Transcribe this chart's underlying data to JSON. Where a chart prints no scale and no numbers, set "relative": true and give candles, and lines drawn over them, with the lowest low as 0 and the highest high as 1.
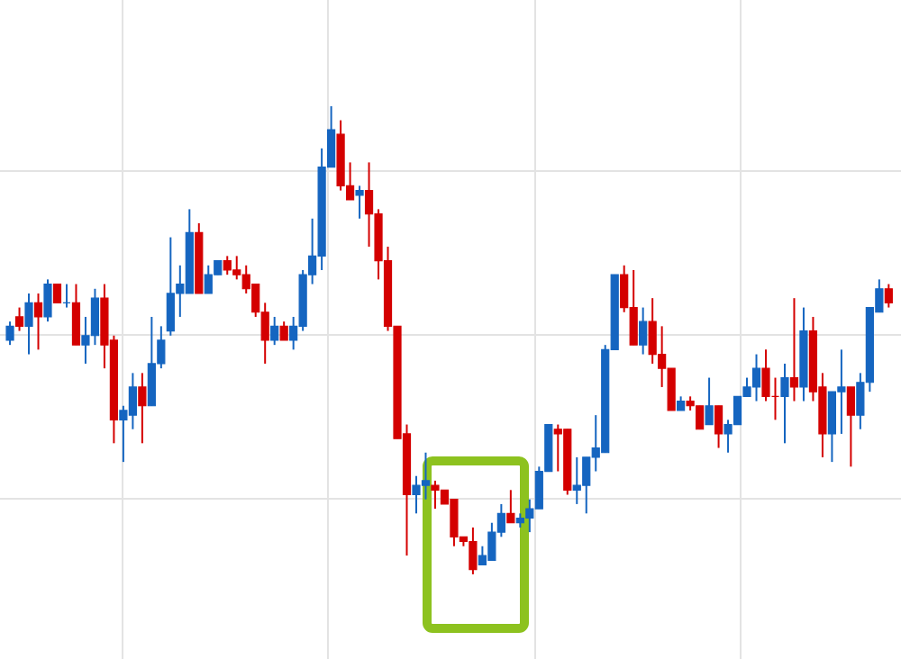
{
  "chart_data": {
    "type": "candlestick",
    "relative": true,
    "grid": true,
    "categories": [
      null,
      null,
      null,
      null,
      null,
      null,
      null,
      null,
      null,
      null,
      null,
      null,
      null,
      null,
      null,
      null,
      null,
      null,
      null,
      null,
      null,
      null,
      null,
      null,
      null,
      null,
      null,
      null,
      null,
      null,
      null,
      null,
      null,
      null,
      null,
      null,
      null,
      null,
      null,
      null,
      null,
      null,
      null,
      null,
      null,
      null,
      null,
      null,
      null,
      null,
      null,
      null,
      null,
      null,
      null,
      null,
      null,
      null,
      null,
      null,
      null,
      null,
      null,
      null,
      null,
      null,
      null,
      null,
      null,
      null,
      null,
      null,
      null,
      null,
      null,
      null,
      null,
      null,
      null,
      null,
      null,
      null,
      null,
      null,
      null,
      null,
      null,
      null,
      null,
      null,
      null,
      null,
      null,
      null
    ],
    "ohlc": [
      [
        0.5,
        0.54,
        0.49,
        0.53
      ],
      [
        0.55,
        0.57,
        0.52,
        0.53
      ],
      [
        0.53,
        0.6,
        0.47,
        0.58
      ],
      [
        0.58,
        0.6,
        0.48,
        0.55
      ],
      [
        0.55,
        0.63,
        0.54,
        0.62
      ],
      [
        0.62,
        0.62,
        0.58,
        0.58
      ],
      [
        0.58,
        0.62,
        0.57,
        0.58
      ],
      [
        0.58,
        0.62,
        0.49,
        0.49
      ],
      [
        0.49,
        0.55,
        0.45,
        0.51
      ],
      [
        0.51,
        0.61,
        0.49,
        0.59
      ],
      [
        0.59,
        0.62,
        0.44,
        0.49
      ],
      [
        0.5,
        0.51,
        0.28,
        0.33
      ],
      [
        0.33,
        0.36,
        0.24,
        0.35
      ],
      [
        0.34,
        0.43,
        0.31,
        0.4
      ],
      [
        0.4,
        0.43,
        0.28,
        0.36
      ],
      [
        0.36,
        0.55,
        0.36,
        0.45
      ],
      [
        0.45,
        0.53,
        0.44,
        0.5
      ],
      [
        0.52,
        0.72,
        0.51,
        0.6
      ],
      [
        0.6,
        0.66,
        0.55,
        0.62
      ],
      [
        0.6,
        0.78,
        0.6,
        0.73
      ],
      [
        0.73,
        0.75,
        0.6,
        0.6
      ],
      [
        0.6,
        0.66,
        0.6,
        0.64
      ],
      [
        0.64,
        0.67,
        0.64,
        0.67
      ],
      [
        0.67,
        0.68,
        0.64,
        0.65
      ],
      [
        0.65,
        0.68,
        0.63,
        0.64
      ],
      [
        0.64,
        0.66,
        0.6,
        0.61
      ],
      [
        0.62,
        0.62,
        0.55,
        0.56
      ],
      [
        0.56,
        0.58,
        0.45,
        0.5
      ],
      [
        0.5,
        0.55,
        0.49,
        0.53
      ],
      [
        0.53,
        0.54,
        0.5,
        0.5
      ],
      [
        0.5,
        0.55,
        0.48,
        0.53
      ],
      [
        0.53,
        0.65,
        0.52,
        0.64
      ],
      [
        0.64,
        0.76,
        0.62,
        0.68
      ],
      [
        0.68,
        0.91,
        0.65,
        0.87
      ],
      [
        0.87,
        1.0,
        0.87,
        0.95
      ],
      [
        0.94,
        0.97,
        0.82,
        0.83
      ],
      [
        0.83,
        0.88,
        0.8,
        0.8
      ],
      [
        0.81,
        0.83,
        0.76,
        0.82
      ],
      [
        0.82,
        0.88,
        0.7,
        0.77
      ],
      [
        0.77,
        0.78,
        0.63,
        0.67
      ],
      [
        0.67,
        0.7,
        0.52,
        0.53
      ],
      [
        0.53,
        0.53,
        0.29,
        0.29
      ],
      [
        0.3,
        0.32,
        0.04,
        0.17
      ],
      [
        0.17,
        0.21,
        0.13,
        0.19
      ],
      [
        0.19,
        0.26,
        0.16,
        0.2
      ],
      [
        0.19,
        0.2,
        0.14,
        0.18
      ],
      [
        0.18,
        0.18,
        0.15,
        0.15
      ],
      [
        0.16,
        0.16,
        0.06,
        0.08
      ],
      [
        0.08,
        0.08,
        0.06,
        0.07
      ],
      [
        0.07,
        0.1,
        0.0,
        0.01
      ],
      [
        0.02,
        0.06,
        0.02,
        0.04
      ],
      [
        0.03,
        0.11,
        0.03,
        0.09
      ],
      [
        0.09,
        0.15,
        0.08,
        0.13
      ],
      [
        0.13,
        0.18,
        0.11,
        0.11
      ],
      [
        0.11,
        0.13,
        0.1,
        0.12
      ],
      [
        0.12,
        0.16,
        0.09,
        0.14
      ],
      [
        0.14,
        0.23,
        0.14,
        0.22
      ],
      [
        0.22,
        0.32,
        0.22,
        0.32
      ],
      [
        0.31,
        0.32,
        0.22,
        0.3
      ],
      [
        0.31,
        0.31,
        0.17,
        0.18
      ],
      [
        0.18,
        0.25,
        0.15,
        0.19
      ],
      [
        0.19,
        0.25,
        0.13,
        0.25
      ],
      [
        0.25,
        0.34,
        0.22,
        0.27
      ],
      [
        0.26,
        0.49,
        0.26,
        0.48
      ],
      [
        0.48,
        0.64,
        0.48,
        0.64
      ],
      [
        0.64,
        0.66,
        0.56,
        0.57
      ],
      [
        0.57,
        0.65,
        0.49,
        0.49
      ],
      [
        0.49,
        0.57,
        0.47,
        0.54
      ],
      [
        0.54,
        0.59,
        0.45,
        0.47
      ],
      [
        0.47,
        0.53,
        0.4,
        0.44
      ],
      [
        0.44,
        0.44,
        0.35,
        0.35
      ],
      [
        0.35,
        0.38,
        0.35,
        0.37
      ],
      [
        0.37,
        0.38,
        0.35,
        0.36
      ],
      [
        0.36,
        0.36,
        0.31,
        0.31
      ],
      [
        0.32,
        0.42,
        0.32,
        0.36
      ],
      [
        0.36,
        0.36,
        0.27,
        0.3
      ],
      [
        0.3,
        0.33,
        0.26,
        0.32
      ],
      [
        0.32,
        0.38,
        0.32,
        0.38
      ],
      [
        0.38,
        0.42,
        0.38,
        0.4
      ],
      [
        0.4,
        0.47,
        0.37,
        0.44
      ],
      [
        0.44,
        0.48,
        0.37,
        0.38
      ],
      [
        0.38,
        0.42,
        0.33,
        0.38
      ],
      [
        0.38,
        0.45,
        0.28,
        0.42
      ],
      [
        0.42,
        0.59,
        0.37,
        0.4
      ],
      [
        0.4,
        0.57,
        0.37,
        0.52
      ],
      [
        0.52,
        0.55,
        0.37,
        0.39
      ],
      [
        0.4,
        0.43,
        0.25,
        0.3
      ],
      [
        0.3,
        0.39,
        0.24,
        0.39
      ],
      [
        0.39,
        0.48,
        0.3,
        0.4
      ],
      [
        0.4,
        0.4,
        0.23,
        0.34
      ],
      [
        0.34,
        0.43,
        0.31,
        0.41
      ],
      [
        0.41,
        0.57,
        0.39,
        0.57
      ],
      [
        0.56,
        0.63,
        0.56,
        0.61
      ],
      [
        0.61,
        0.62,
        0.57,
        0.58
      ]
    ],
    "colors": [
      "#1565c0",
      "#d40000",
      "#1565c0",
      "#d40000",
      "#1565c0",
      "#d40000",
      "#1565c0",
      "#d40000",
      "#1565c0",
      "#1565c0",
      "#d40000",
      "#d40000",
      "#1565c0",
      "#1565c0",
      "#d40000",
      "#1565c0",
      "#1565c0",
      "#1565c0",
      "#1565c0",
      "#1565c0",
      "#d40000",
      "#1565c0",
      "#1565c0",
      "#d40000",
      "#d40000",
      "#d40000",
      "#d40000",
      "#d40000",
      "#1565c0",
      "#d40000",
      "#1565c0",
      "#1565c0",
      "#1565c0",
      "#1565c0",
      "#1565c0",
      "#d40000",
      "#d40000",
      "#1565c0",
      "#d40000",
      "#d40000",
      "#d40000",
      "#d40000",
      "#d40000",
      "#1565c0",
      "#1565c0",
      "#d40000",
      "#d40000",
      "#d40000",
      "#d40000",
      "#d40000",
      "#1565c0",
      "#1565c0",
      "#1565c0",
      "#d40000",
      "#1565c0",
      "#1565c0",
      "#1565c0",
      "#1565c0",
      "#d40000",
      "#d40000",
      "#1565c0",
      "#1565c0",
      "#1565c0",
      "#1565c0",
      "#1565c0",
      "#d40000",
      "#d40000",
      "#1565c0",
      "#d40000",
      "#d40000",
      "#d40000",
      "#1565c0",
      "#d40000",
      "#d40000",
      "#1565c0",
      "#d40000",
      "#1565c0",
      "#1565c0",
      "#1565c0",
      "#1565c0",
      "#d40000",
      "#d40000",
      "#1565c0",
      "#d40000",
      "#1565c0",
      "#d40000",
      "#d40000",
      "#1565c0",
      "#1565c0",
      "#d40000",
      "#1565c0",
      "#1565c0",
      "#1565c0",
      "#d40000"
    ]
  }
}
